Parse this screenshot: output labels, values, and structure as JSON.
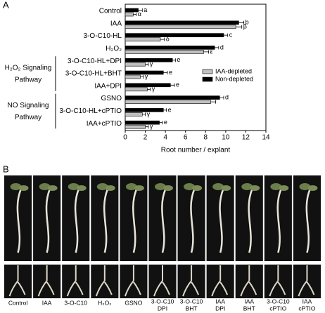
{
  "chart_data": {
    "type": "bar",
    "orientation": "horizontal",
    "panel_label": "A",
    "categories": [
      "Control",
      "IAA",
      "3-O-C10-HL",
      "H₂O₂",
      "3-O-C10-HL+DPI",
      "3-O-C10-HL+BHT",
      "IAA+DPI",
      "GSNO",
      "3-O-C10-HL+cPTIO",
      "IAA+cPTIO"
    ],
    "groups": [
      {
        "lines": [
          "H₂O₂ Signaling",
          "Pathway"
        ]
      },
      {
        "lines": [
          "NO Signaling",
          "Pathway"
        ]
      }
    ],
    "series": [
      {
        "name": "Non-depleted",
        "color": "#000000",
        "values": [
          1.3,
          11.3,
          9.8,
          8.9,
          4.7,
          3.8,
          4.5,
          9.4,
          3.8,
          3.4
        ],
        "errors": [
          0.4,
          0.5,
          0.4,
          0.4,
          0.3,
          0.4,
          0.4,
          0.4,
          0.3,
          0.3
        ],
        "letters": [
          "a",
          "b",
          "c",
          "d",
          "e",
          "e",
          "e",
          "d",
          "e",
          "e"
        ]
      },
      {
        "name": "IAA-depleted",
        "color": "#c0c0c0",
        "values": [
          0.8,
          11.0,
          3.5,
          7.8,
          2.0,
          1.5,
          2.2,
          8.5,
          1.7,
          2.0
        ],
        "errors": [
          0.3,
          0.6,
          0.4,
          0.5,
          0.3,
          0.3,
          0.3,
          0.5,
          0.3,
          0.3
        ],
        "letters": [
          "α",
          "β",
          "δ",
          "ε",
          "γ",
          "γ",
          "γ",
          null,
          "γ",
          "γ"
        ]
      }
    ],
    "x_label": "Root number / explant",
    "xlim": [
      0,
      14
    ],
    "xticks": [
      0,
      2,
      4,
      6,
      8,
      10,
      12,
      14
    ],
    "legend": "right"
  },
  "panel_b": {
    "label": "B",
    "photo_labels": [
      [
        "Control"
      ],
      [
        "IAA"
      ],
      [
        "3-O-C10"
      ],
      [
        "H₂O₂"
      ],
      [
        "GSNO"
      ],
      [
        "3-O-C10",
        "DPI"
      ],
      [
        "3-O-C10",
        "BHT"
      ],
      [
        "IAA",
        "DPI"
      ],
      [
        "IAA",
        "BHT"
      ],
      [
        "3-O-C10",
        "cPTIO"
      ],
      [
        "IAA",
        "cPTIO"
      ]
    ]
  }
}
